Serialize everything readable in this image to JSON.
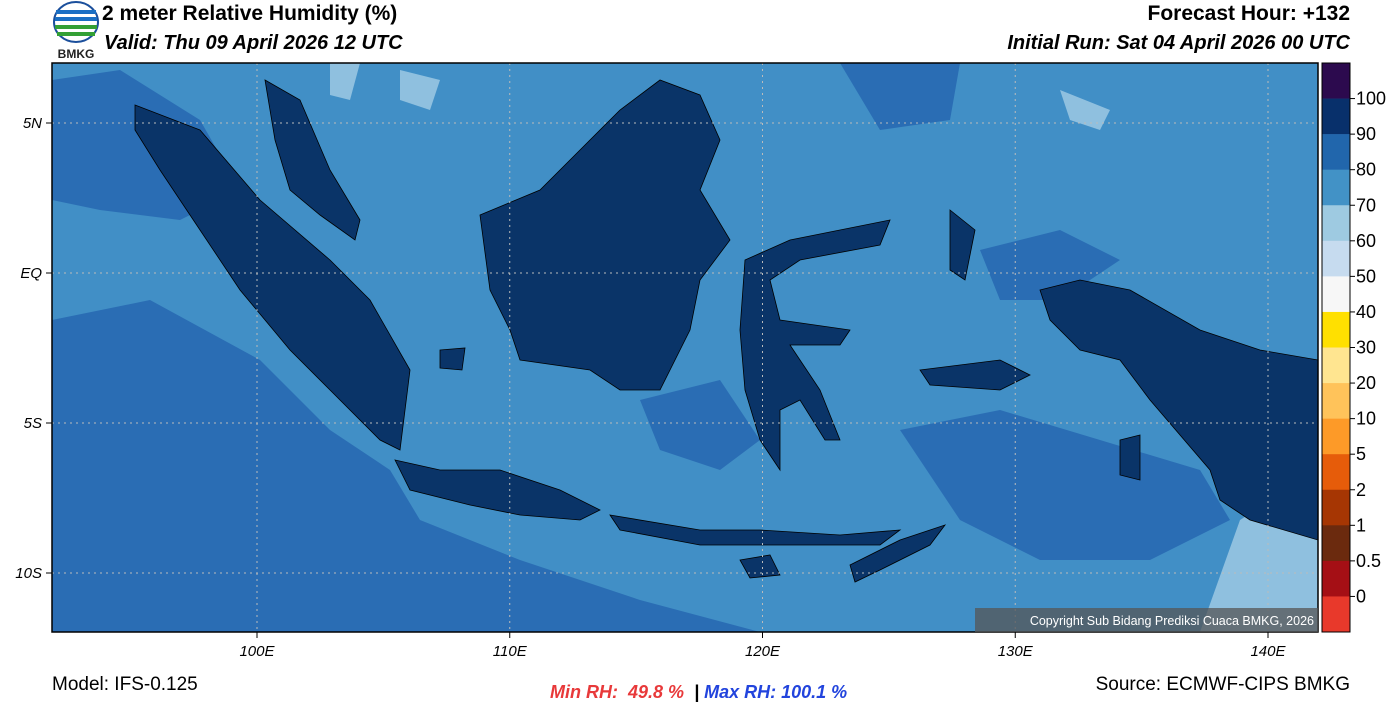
{
  "header": {
    "logo_text": "BMKG",
    "title": "2 meter Relative Humidity (%)",
    "valid": "Valid: Thu 09 April 2026 12 UTC",
    "forecast_hour": "Forecast Hour: +132",
    "initial_run": "Initial Run: Sat 04 April 2026 00 UTC"
  },
  "map": {
    "lat_labels": [
      "5N",
      "EQ",
      "5S",
      "10S"
    ],
    "lon_labels": [
      "100E",
      "110E",
      "120E",
      "130E",
      "140E"
    ],
    "copyright": "Copyright Sub Bidang Prediksi Cuaca BMKG, 2026"
  },
  "colorbar": {
    "levels": [
      100,
      90,
      80,
      70,
      60,
      50,
      40,
      30,
      20,
      10,
      5,
      2,
      1,
      0.5,
      0
    ],
    "colors": [
      "#2c0a4e",
      "#08306b",
      "#2166ac",
      "#4292c6",
      "#9ecae1",
      "#c6dbef",
      "#f7f7f7",
      "#ffe000",
      "#ffe590",
      "#ffc35a",
      "#fd9a28",
      "#e65c0a",
      "#a63603",
      "#6b2a0e",
      "#a50f15",
      "#e8392b"
    ]
  },
  "footer": {
    "model": "Model: IFS-0.125",
    "min_rh": "Min RH:  49.8 %",
    "separator": "|",
    "max_rh": "Max RH: 100.1 %",
    "source": "Source: ECMWF-CIPS BMKG"
  }
}
